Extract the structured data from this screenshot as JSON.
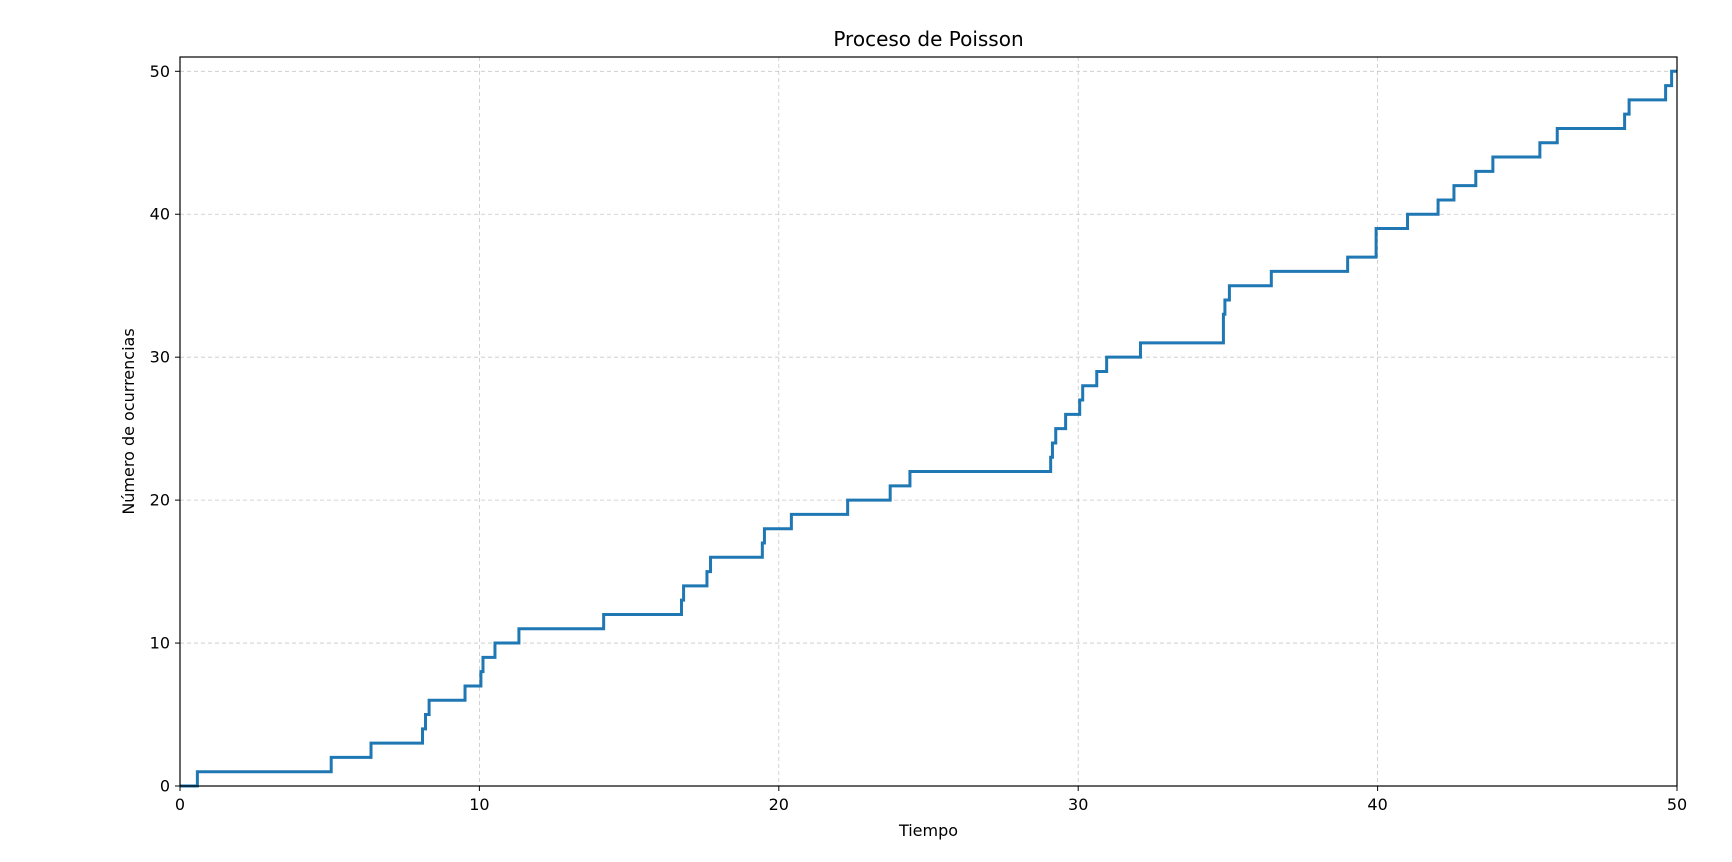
{
  "chart_data": {
    "type": "line",
    "drawstyle": "steps-post",
    "title": "Proceso de Poisson",
    "xlabel": "Tiempo",
    "ylabel": "Número de ocurrencias",
    "xlim": [
      0,
      50
    ],
    "ylim": [
      0,
      51
    ],
    "xticks": [
      0,
      10,
      20,
      30,
      40,
      50
    ],
    "yticks": [
      0,
      10,
      20,
      30,
      40,
      50
    ],
    "grid": true,
    "grid_style": "dashed",
    "legend": "none",
    "color": "#1f77b4",
    "series": [
      {
        "x": [
          0,
          0.58,
          5.05,
          6.38,
          8.1,
          8.2,
          8.32,
          9.52,
          10.05,
          10.12,
          10.52,
          11.32,
          14.15,
          16.75,
          16.82,
          17.6,
          17.72,
          19.45,
          19.52,
          20.42,
          22.3,
          23.72,
          24.38,
          29.08,
          29.14,
          29.25,
          29.58,
          30.05,
          30.15,
          30.62,
          30.95,
          32.08,
          34.85,
          34.9,
          35.05,
          36.45,
          39.0,
          39.95,
          41.0,
          42.02,
          42.55,
          43.28,
          43.85,
          45.42,
          46.0,
          48.25,
          48.4,
          49.62,
          49.82,
          50.0
        ],
        "y": [
          0,
          1,
          2,
          3,
          4,
          5,
          6,
          7,
          8,
          9,
          10,
          11,
          12,
          13,
          14,
          15,
          16,
          17,
          18,
          19,
          20,
          21,
          22,
          23,
          24,
          25,
          26,
          27,
          28,
          29,
          30,
          31,
          33,
          34,
          35,
          36,
          37,
          39,
          40,
          41,
          42,
          43,
          44,
          45,
          46,
          47,
          48,
          49,
          50,
          50
        ]
      }
    ]
  }
}
